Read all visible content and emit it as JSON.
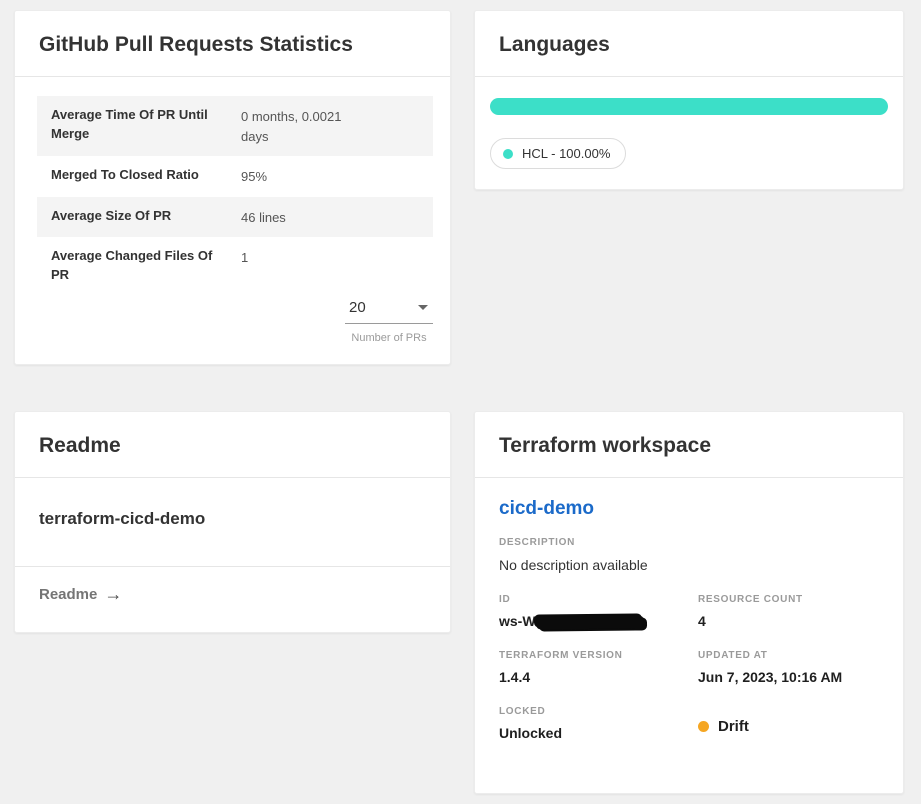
{
  "pr_stats": {
    "title": "GitHub Pull Requests Statistics",
    "rows": [
      {
        "label": "Average Time Of PR Until Merge",
        "value": "0 months, 0.0021 days"
      },
      {
        "label": "Merged To Closed Ratio",
        "value": "95%"
      },
      {
        "label": "Average Size Of PR",
        "value": "46 lines"
      },
      {
        "label": "Average Changed Files Of PR",
        "value": "1"
      }
    ],
    "pr_count_select": {
      "value": "20",
      "caption": "Number of PRs"
    }
  },
  "languages": {
    "title": "Languages",
    "bar_color": "#3CDFC8",
    "items": [
      {
        "label": "HCL - 100.00%",
        "color": "#3CDFC8",
        "percent": 100
      }
    ]
  },
  "readme": {
    "title": "Readme",
    "repo_name": "terraform-cicd-demo",
    "link_label": "Readme"
  },
  "workspace": {
    "title": "Terraform workspace",
    "name": "cicd-demo",
    "name_color": "#1B6AC9",
    "description_label": "DESCRIPTION",
    "description": "No description available",
    "id_label": "ID",
    "id_visible": "ws-W",
    "id_redacted": true,
    "resource_count_label": "RESOURCE COUNT",
    "resource_count": "4",
    "version_label": "TERRAFORM VERSION",
    "version": "1.4.4",
    "updated_label": "UPDATED AT",
    "updated": "Jun 7, 2023, 10:16 AM",
    "locked_label": "LOCKED",
    "locked": "Unlocked",
    "drift_label": "Drift",
    "drift_color": "#F5A623"
  }
}
